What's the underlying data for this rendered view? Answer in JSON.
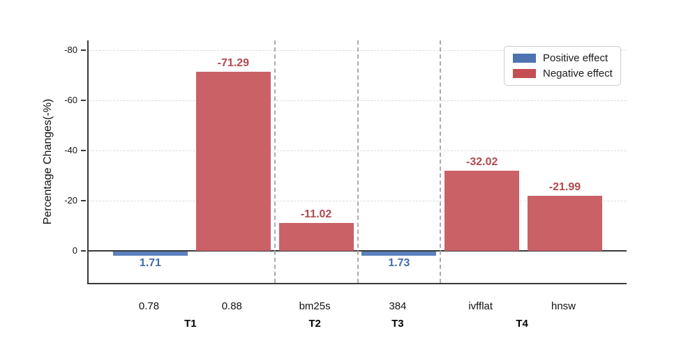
{
  "figure": {
    "background": "#ffffff"
  },
  "chart_data": {
    "type": "bar",
    "title": "",
    "ylabel": "Percentage Changes(-%)",
    "y_axis": {
      "ticks": [
        0,
        -20,
        -40,
        -60,
        -80
      ],
      "orientation": "negated: more-negative values plotted higher",
      "grid": true
    },
    "groups": [
      {
        "label": "T1",
        "categories": [
          "0.78",
          "0.88"
        ]
      },
      {
        "label": "T2",
        "categories": [
          "bm25s"
        ]
      },
      {
        "label": "T3",
        "categories": [
          "384"
        ]
      },
      {
        "label": "T4",
        "categories": [
          "ivfflat",
          "hnsw"
        ]
      }
    ],
    "bars": [
      {
        "category": "0.78",
        "group": "T1",
        "series": "Positive effect",
        "value": 1.71,
        "label": "1.71"
      },
      {
        "category": "0.88",
        "group": "T1",
        "series": "Negative effect",
        "value": -71.29,
        "label": "-71.29"
      },
      {
        "category": "bm25s",
        "group": "T2",
        "series": "Negative effect",
        "value": -11.02,
        "label": "-11.02"
      },
      {
        "category": "384",
        "group": "T3",
        "series": "Positive effect",
        "value": 1.73,
        "label": "1.73"
      },
      {
        "category": "ivfflat",
        "group": "T4",
        "series": "Negative effect",
        "value": -32.02,
        "label": "-32.02"
      },
      {
        "category": "hnsw",
        "group": "T4",
        "series": "Negative effect",
        "value": -21.99,
        "label": "-21.99"
      }
    ],
    "legend": {
      "position": "upper right",
      "entries": [
        {
          "label": "Positive effect",
          "color": "#4c72b0"
        },
        {
          "label": "Negative effect",
          "color": "#c44e52"
        }
      ]
    },
    "colors": {
      "positive_fill": "#5b80be",
      "negative_fill": "#c96167",
      "positive_label": "#3f6cb0",
      "negative_label": "#b3494f",
      "grid": "#dcdcdc",
      "separator": "#ababab",
      "axis": "#3a3a3a"
    },
    "group_separators": true
  }
}
